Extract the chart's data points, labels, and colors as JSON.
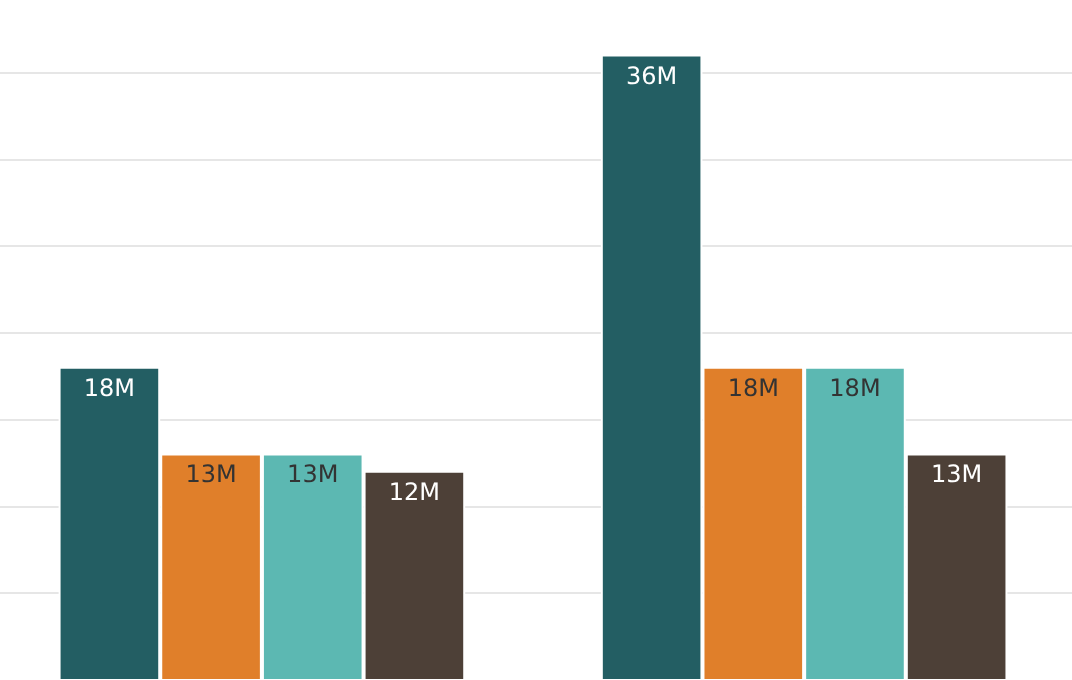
{
  "chart_data": {
    "type": "bar",
    "categories": [
      null,
      null
    ],
    "series": [
      {
        "color": "#235e63",
        "values": [
          18,
          36
        ],
        "value_labels": [
          "18M",
          "36M"
        ]
      },
      {
        "color": "#e07f2a",
        "values": [
          13,
          18
        ],
        "value_labels": [
          "13M",
          "18M"
        ]
      },
      {
        "color": "#5cb8b2",
        "values": [
          13,
          18
        ],
        "value_labels": [
          "13M",
          "18M"
        ]
      },
      {
        "color": "#4d4037",
        "values": [
          12,
          13
        ],
        "value_labels": [
          "12M",
          "13M"
        ]
      }
    ],
    "ylim": [
      0,
      39.2
    ],
    "yticks": [
      {
        "value": 0,
        "label": null
      },
      {
        "value": 5,
        "label": null
      },
      {
        "value": 10,
        "label": null
      },
      {
        "value": 15,
        "label": null
      },
      {
        "value": 20,
        "label": null
      },
      {
        "value": 25,
        "label": null
      },
      {
        "value": 30,
        "label": null
      },
      {
        "value": 35,
        "label": null
      }
    ],
    "grid": "y"
  }
}
